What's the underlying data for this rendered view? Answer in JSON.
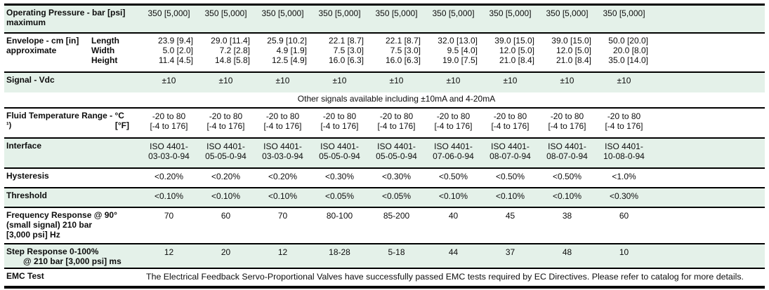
{
  "colors": {
    "row_green": "#e4f1e9",
    "rule": "#000000",
    "text": "#0d0d0d"
  },
  "table": {
    "operating_pressure": {
      "label_line1": "Operating Pressure - bar [psi]",
      "label_line2": "maximum",
      "values": [
        "350 [5,000]",
        "350 [5,000]",
        "350 [5,000]",
        "350 [5,000]",
        "350 [5,000]",
        "350 [5,000]",
        "350 [5,000]",
        "350 [5,000]",
        "350 [5,000]"
      ]
    },
    "envelope": {
      "label_line1": "Envelope - cm [in]",
      "label_line2": "approximate",
      "sublabels": [
        "Length",
        "Width",
        "Height"
      ],
      "values": [
        [
          "23.9 [9.4]",
          "5.0 [2.0]",
          "11.4 [4.5]"
        ],
        [
          "29.0 [11.4]",
          "7.2 [2.8]",
          "14.8 [5.8]"
        ],
        [
          "25.9 [10.2]",
          "4.9 [1.9]",
          "12.5 [4.9]"
        ],
        [
          "22.1 [8.7]",
          "7.5 [3.0]",
          "16.0 [6.3]"
        ],
        [
          "22.1 [8.7]",
          "7.5 [3.0]",
          "16.0 [6.3]"
        ],
        [
          "32.0 [13.0]",
          "9.5 [4.0]",
          "19.0 [7.5]"
        ],
        [
          "39.0 [15.0]",
          "12.0 [5.0]",
          "21.0 [8.4]"
        ],
        [
          "39.0 [15.0]",
          "12.0 [5.0]",
          "21.0 [8.4]"
        ],
        [
          "50.0 [20.0]",
          "20.0 [8.0]",
          "35.0 [14.0]"
        ]
      ]
    },
    "signal": {
      "label": "Signal - Vdc",
      "values": [
        "±10",
        "±10",
        "±10",
        "±10",
        "±10",
        "±10",
        "±10",
        "±10",
        "±10"
      ],
      "note": "Other signals available including ±10mA and 4-20mA"
    },
    "fluid_temp": {
      "label_line1": "Fluid Temperature Range - °C",
      "footnote_mark": "¹)",
      "label_unit2": "[°F]",
      "values": [
        [
          "-20 to 80",
          "[-4 to 176]"
        ],
        [
          "-20 to 80",
          "[-4 to 176]"
        ],
        [
          "-20 to 80",
          "[-4 to 176]"
        ],
        [
          "-20 to 80",
          "[-4 to 176]"
        ],
        [
          "-20 to 80",
          "[-4 to 176]"
        ],
        [
          "-20 to 80",
          "[-4 to 176]"
        ],
        [
          "-20 to 80",
          "[-4 to 176]"
        ],
        [
          "-20 to 80",
          "[-4 to 176]"
        ],
        [
          "-20 to 80",
          "[-4 to 176]"
        ]
      ]
    },
    "interface": {
      "label": "Interface",
      "values": [
        [
          "ISO 4401-",
          "03-03-0-94"
        ],
        [
          "ISO 4401-",
          "05-05-0-94"
        ],
        [
          "ISO 4401-",
          "03-03-0-94"
        ],
        [
          "ISO 4401-",
          "05-05-0-94"
        ],
        [
          "ISO 4401-",
          "05-05-0-94"
        ],
        [
          "ISO 4401-",
          "07-06-0-94"
        ],
        [
          "ISO 4401-",
          "08-07-0-94"
        ],
        [
          "ISO 4401-",
          "08-07-0-94"
        ],
        [
          "ISO 4401-",
          "10-08-0-94"
        ]
      ]
    },
    "hysteresis": {
      "label": "Hysteresis",
      "values": [
        "<0.20%",
        "<0.20%",
        "<0.20%",
        "<0.30%",
        "<0.30%",
        "<0.50%",
        "<0.50%",
        "<0.50%",
        "<1.0%"
      ]
    },
    "threshold": {
      "label": "Threshold",
      "values": [
        "<0.10%",
        "<0.10%",
        "<0.10%",
        "<0.05%",
        "<0.05%",
        "<0.10%",
        "<0.10%",
        "<0.10%",
        "<0.30%"
      ]
    },
    "frequency_response": {
      "label_line1": "Frequency Response @ 90°",
      "label_line2": "(small signal) 210 bar",
      "label_line3": "[3,000 psi] Hz",
      "values": [
        "70",
        "60",
        "70",
        "80-100",
        "85-200",
        "40",
        "45",
        "38",
        "60"
      ]
    },
    "step_response": {
      "label_line1": "Step Response 0-100%",
      "label_line2": "@ 210 bar [3,000 psi] ms",
      "values": [
        "12",
        "20",
        "12",
        "18-28",
        "5-18",
        "44",
        "37",
        "48",
        "10"
      ]
    },
    "emc": {
      "label": "EMC Test",
      "text": "The Electrical Feedback Servo-Proportional Valves have successfully passed EMC tests required by EC Directives. Please refer to catalog for more details."
    }
  }
}
